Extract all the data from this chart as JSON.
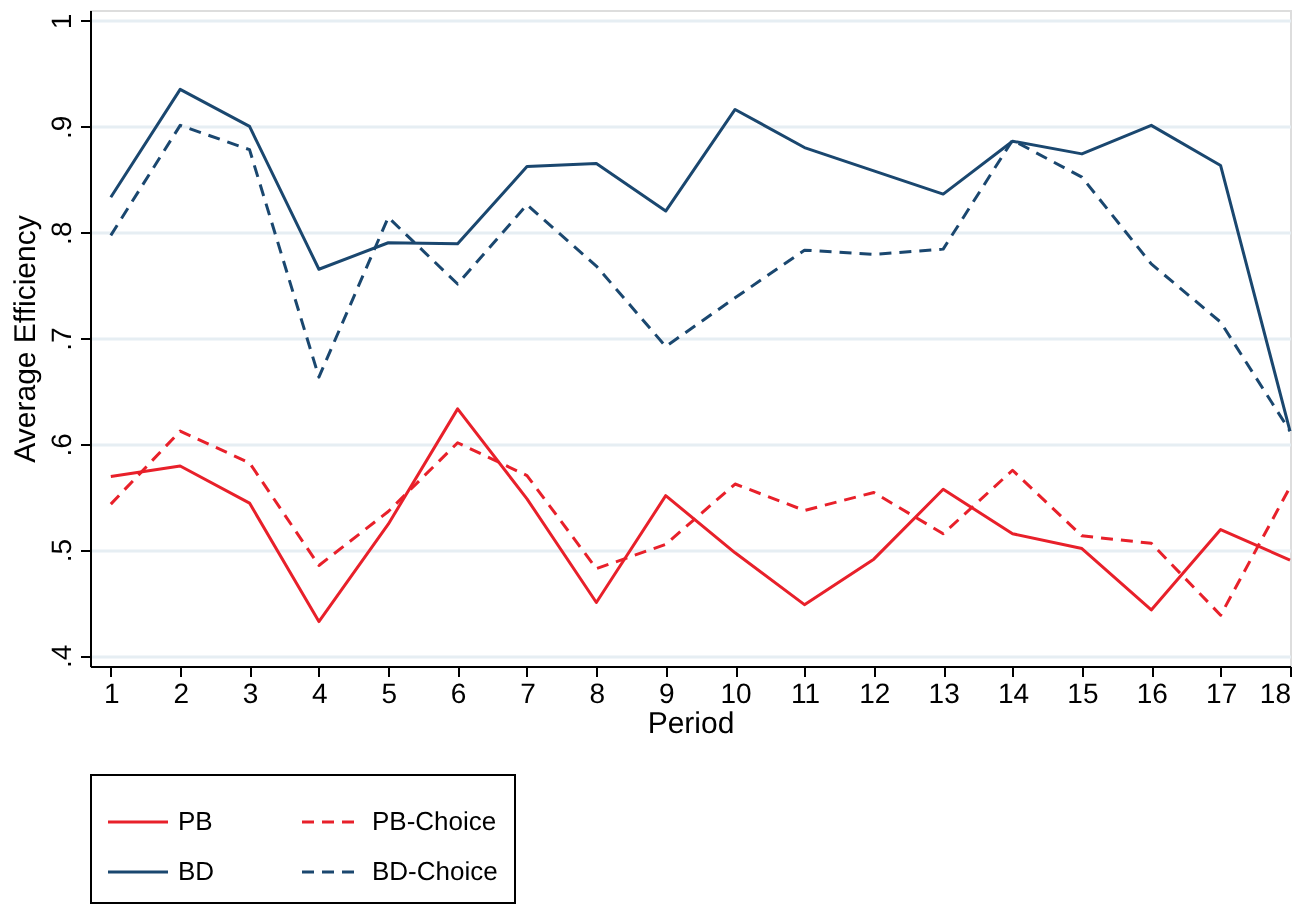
{
  "chart_data": {
    "type": "line",
    "xlabel": "Period",
    "ylabel": "Average Efficiency",
    "x": [
      1,
      2,
      3,
      4,
      5,
      6,
      7,
      8,
      9,
      10,
      11,
      12,
      13,
      14,
      15,
      16,
      17,
      18
    ],
    "xlim": [
      0.7,
      18
    ],
    "xticks": [
      1,
      2,
      3,
      4,
      5,
      6,
      7,
      8,
      9,
      10,
      11,
      12,
      13,
      14,
      15,
      16,
      17,
      18
    ],
    "ylim": [
      0.39,
      1.01
    ],
    "yticks": [
      {
        "value": 0.4,
        "label": ".4"
      },
      {
        "value": 0.5,
        "label": ".5"
      },
      {
        "value": 0.6,
        "label": ".6"
      },
      {
        "value": 0.7,
        "label": ".7"
      },
      {
        "value": 0.8,
        "label": ".8"
      },
      {
        "value": 0.9,
        "label": ".9"
      },
      {
        "value": 1,
        "label": "1"
      }
    ],
    "grid": "y",
    "legend": "bottom",
    "series": [
      {
        "name": "PB",
        "color": "#e8202a",
        "line_style": "solid",
        "values": [
          0.569,
          0.579,
          0.544,
          0.432,
          0.524,
          0.633,
          0.548,
          0.45,
          0.551,
          0.497,
          0.448,
          0.491,
          0.557,
          0.515,
          0.501,
          0.443,
          0.519,
          0.49
        ]
      },
      {
        "name": "PB-Choice",
        "color": "#e8202a",
        "line_style": "dashed",
        "values": [
          0.543,
          0.612,
          0.582,
          0.485,
          0.536,
          0.601,
          0.57,
          0.482,
          0.505,
          0.562,
          0.537,
          0.554,
          0.515,
          0.575,
          0.513,
          0.506,
          0.438,
          0.559
        ]
      },
      {
        "name": "BD",
        "color": "#1a476f",
        "line_style": "solid",
        "values": [
          0.833,
          0.935,
          0.9,
          0.765,
          0.79,
          0.789,
          0.862,
          0.865,
          0.82,
          0.916,
          0.88,
          0.858,
          0.836,
          0.886,
          0.874,
          0.901,
          0.863,
          0.612
        ]
      },
      {
        "name": "BD-Choice",
        "color": "#1a476f",
        "line_style": "dashed",
        "values": [
          0.797,
          0.901,
          0.878,
          0.663,
          0.814,
          0.751,
          0.826,
          0.768,
          0.692,
          0.738,
          0.783,
          0.779,
          0.784,
          0.887,
          0.852,
          0.77,
          0.715,
          0.612
        ]
      }
    ]
  }
}
